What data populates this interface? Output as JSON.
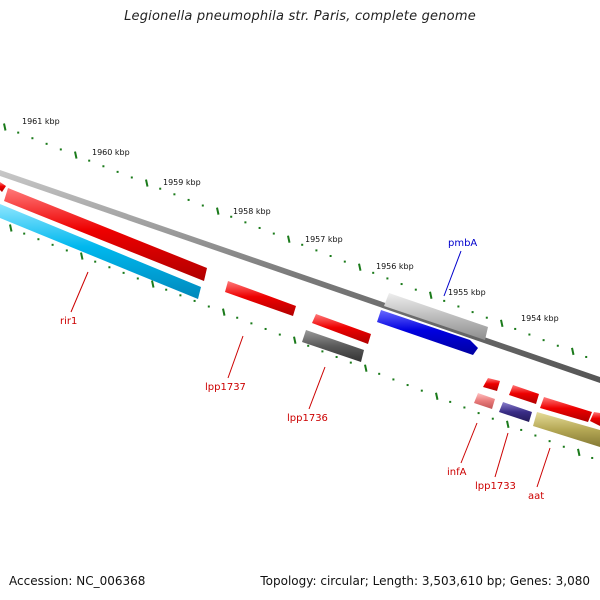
{
  "title": "Legionella pneumophila str. Paris, complete genome",
  "footer": {
    "accession": "Accession: NC_006368",
    "summary": "Topology: circular; Length: 3,503,610 bp; Genes: 3,080"
  },
  "kbp_labels": [
    "1961 kbp",
    "1960 kbp",
    "1959 kbp",
    "1958 kbp",
    "1957 kbp",
    "1956 kbp",
    "1955 kbp",
    "1954 kbp"
  ],
  "gene_labels": [
    {
      "text": "rir1",
      "color": "#cc0000"
    },
    {
      "text": "lpp1737",
      "color": "#cc0000"
    },
    {
      "text": "lpp1736",
      "color": "#cc0000"
    },
    {
      "text": "pmbA",
      "color": "#0000cc"
    },
    {
      "text": "infA",
      "color": "#cc0000"
    },
    {
      "text": "lpp1733",
      "color": "#cc0000"
    },
    {
      "text": "aat",
      "color": "#cc0000"
    }
  ],
  "colors": {
    "backbone": "#7a7a7a",
    "tick": "#1a7a1a",
    "gene_red": "#e80000",
    "gene_cyan": "#00b8ee",
    "gene_blue": "#0000dd",
    "gene_gray": "#b8b8b8",
    "gene_darkgray": "#555555",
    "gene_purple": "#3a2d86",
    "gene_olive": "#b5a855",
    "gene_pink": "#e88080"
  }
}
